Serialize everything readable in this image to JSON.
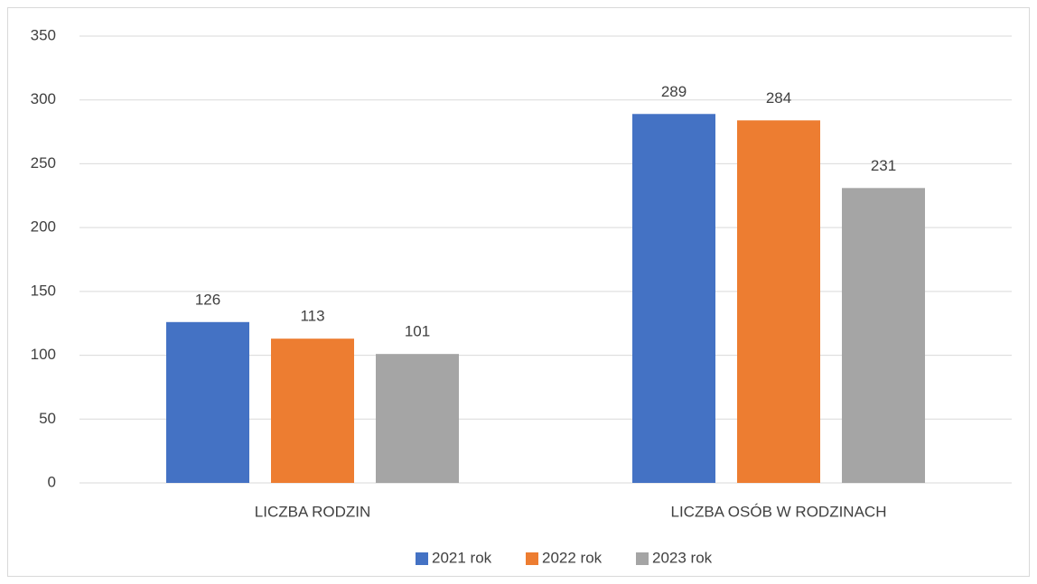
{
  "chart_data": {
    "type": "bar",
    "categories": [
      "LICZBA RODZIN",
      "LICZBA OSÓB W RODZINACH"
    ],
    "series": [
      {
        "name": "2021 rok",
        "color": "#4472c4",
        "values": [
          126,
          289
        ]
      },
      {
        "name": "2022 rok",
        "color": "#ed7d31",
        "values": [
          113,
          284
        ]
      },
      {
        "name": "2023 rok",
        "color": "#a5a5a5",
        "values": [
          101,
          231
        ]
      }
    ],
    "ylim": [
      0,
      350
    ],
    "yticks": [
      0,
      50,
      100,
      150,
      200,
      250,
      300,
      350
    ],
    "grid": true,
    "legend": "bottom"
  }
}
